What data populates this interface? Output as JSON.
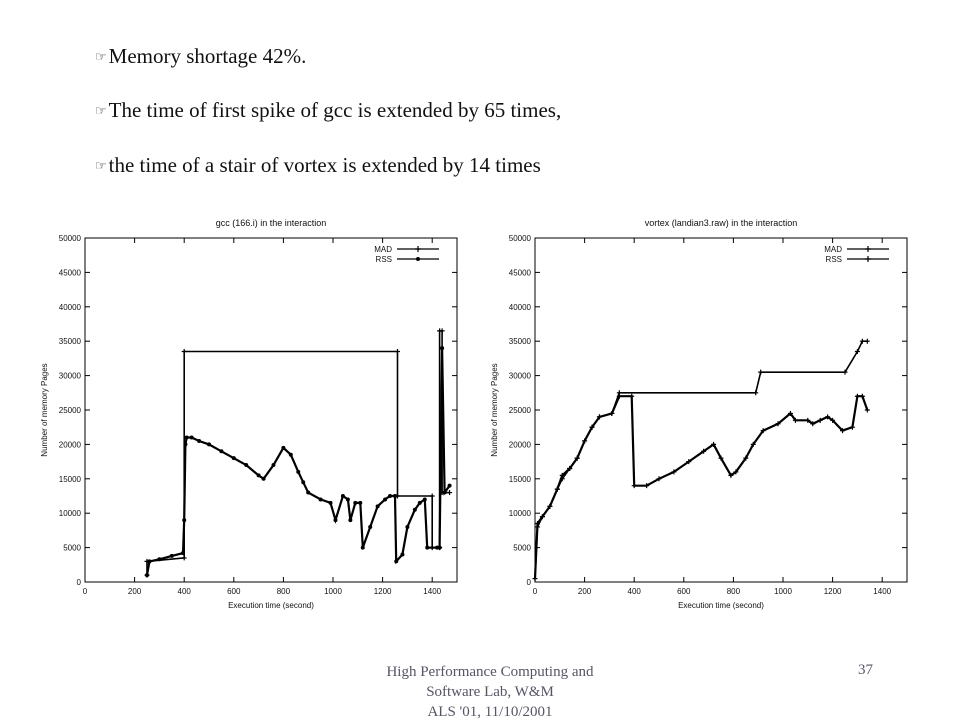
{
  "bullets": [
    {
      "glyph": "☞",
      "text": "Memory shortage 42%."
    },
    {
      "glyph": "☞",
      "text": "The time of first spike of gcc is extended by 65 times,"
    },
    {
      "glyph": "☞",
      "text": "the time of a stair of vortex is extended by 14 times"
    }
  ],
  "footer": {
    "lines": [
      "High Performance Computing and",
      "Software Lab, W&M",
      "ALS '01,   11/10/2001"
    ],
    "page_number": "37"
  },
  "chart_data": [
    {
      "type": "line",
      "title": "gcc (166.i) in the interaction",
      "xlabel": "Execution time (second)",
      "ylabel": "Number of memory Pages",
      "xlim": [
        0,
        1500
      ],
      "ylim": [
        0,
        50000
      ],
      "xticks": [
        0,
        200,
        400,
        600,
        800,
        1000,
        1200,
        1400
      ],
      "yticks": [
        0,
        5000,
        10000,
        15000,
        20000,
        25000,
        30000,
        35000,
        40000,
        45000,
        50000
      ],
      "legend_position": "top-right",
      "grid": false,
      "series": [
        {
          "name": "MAD",
          "marker": "+",
          "points": [
            [
              250,
              1000
            ],
            [
              250,
              3000
            ],
            [
              400,
              3500
            ],
            [
              400,
              33500
            ],
            [
              1260,
              33500
            ],
            [
              1260,
              12500
            ],
            [
              1400,
              12500
            ],
            [
              1400,
              5000
            ],
            [
              1430,
              5000
            ],
            [
              1430,
              36500
            ],
            [
              1440,
              36500
            ],
            [
              1440,
              13000
            ],
            [
              1470,
              13000
            ]
          ]
        },
        {
          "name": "RSS",
          "marker": "dot",
          "points": [
            [
              250,
              1000
            ],
            [
              260,
              3000
            ],
            [
              300,
              3300
            ],
            [
              350,
              3800
            ],
            [
              395,
              4200
            ],
            [
              400,
              9000
            ],
            [
              405,
              20000
            ],
            [
              410,
              21000
            ],
            [
              430,
              21000
            ],
            [
              460,
              20500
            ],
            [
              500,
              20000
            ],
            [
              550,
              19000
            ],
            [
              600,
              18000
            ],
            [
              650,
              17000
            ],
            [
              700,
              15500
            ],
            [
              720,
              15000
            ],
            [
              760,
              17000
            ],
            [
              800,
              19500
            ],
            [
              830,
              18500
            ],
            [
              860,
              16000
            ],
            [
              880,
              14500
            ],
            [
              900,
              13000
            ],
            [
              950,
              12000
            ],
            [
              990,
              11500
            ],
            [
              1010,
              9000
            ],
            [
              1040,
              12500
            ],
            [
              1060,
              12000
            ],
            [
              1070,
              9000
            ],
            [
              1090,
              11500
            ],
            [
              1110,
              11500
            ],
            [
              1120,
              5000
            ],
            [
              1150,
              8000
            ],
            [
              1180,
              11000
            ],
            [
              1210,
              12000
            ],
            [
              1230,
              12500
            ],
            [
              1250,
              12500
            ],
            [
              1255,
              3000
            ],
            [
              1280,
              4000
            ],
            [
              1300,
              8000
            ],
            [
              1330,
              10500
            ],
            [
              1350,
              11500
            ],
            [
              1370,
              12000
            ],
            [
              1380,
              5000
            ],
            [
              1420,
              5000
            ],
            [
              1430,
              5000
            ],
            [
              1440,
              34000
            ],
            [
              1450,
              13000
            ],
            [
              1470,
              14000
            ]
          ]
        }
      ]
    },
    {
      "type": "line",
      "title": "vortex (landian3.raw) in the interaction",
      "xlabel": "Execution time (second)",
      "ylabel": "Number of memory Pages",
      "xlim": [
        0,
        1500
      ],
      "ylim": [
        0,
        50000
      ],
      "xticks": [
        0,
        200,
        400,
        600,
        800,
        1000,
        1200,
        1400
      ],
      "yticks": [
        0,
        5000,
        10000,
        15000,
        20000,
        25000,
        30000,
        35000,
        40000,
        45000,
        50000
      ],
      "legend_position": "top-right",
      "grid": false,
      "series": [
        {
          "name": "MAD",
          "marker": "+",
          "points": [
            [
              0,
              500
            ],
            [
              10,
              8000
            ],
            [
              30,
              9500
            ],
            [
              60,
              11000
            ],
            [
              90,
              13500
            ],
            [
              110,
              15000
            ],
            [
              140,
              16500
            ],
            [
              170,
              18000
            ],
            [
              200,
              20500
            ],
            [
              230,
              22500
            ],
            [
              260,
              24000
            ],
            [
              310,
              24500
            ],
            [
              340,
              27500
            ],
            [
              890,
              27500
            ],
            [
              910,
              30500
            ],
            [
              1250,
              30500
            ],
            [
              1300,
              33500
            ],
            [
              1320,
              35000
            ],
            [
              1340,
              35000
            ]
          ]
        },
        {
          "name": "RSS",
          "marker": "star",
          "points": [
            [
              0,
              500
            ],
            [
              10,
              8500
            ],
            [
              30,
              9500
            ],
            [
              60,
              11000
            ],
            [
              90,
              13500
            ],
            [
              110,
              15500
            ],
            [
              140,
              16500
            ],
            [
              170,
              18000
            ],
            [
              200,
              20500
            ],
            [
              230,
              22500
            ],
            [
              260,
              24000
            ],
            [
              310,
              24500
            ],
            [
              340,
              27000
            ],
            [
              390,
              27000
            ],
            [
              400,
              14000
            ],
            [
              450,
              14000
            ],
            [
              500,
              15000
            ],
            [
              560,
              16000
            ],
            [
              620,
              17500
            ],
            [
              680,
              19000
            ],
            [
              720,
              20000
            ],
            [
              750,
              18000
            ],
            [
              790,
              15500
            ],
            [
              810,
              16000
            ],
            [
              850,
              18000
            ],
            [
              880,
              20000
            ],
            [
              920,
              22000
            ],
            [
              980,
              23000
            ],
            [
              1030,
              24500
            ],
            [
              1050,
              23500
            ],
            [
              1100,
              23500
            ],
            [
              1120,
              23000
            ],
            [
              1150,
              23500
            ],
            [
              1180,
              24000
            ],
            [
              1200,
              23500
            ],
            [
              1240,
              22000
            ],
            [
              1280,
              22500
            ],
            [
              1300,
              27000
            ],
            [
              1320,
              27000
            ],
            [
              1340,
              25000
            ]
          ]
        }
      ]
    }
  ]
}
